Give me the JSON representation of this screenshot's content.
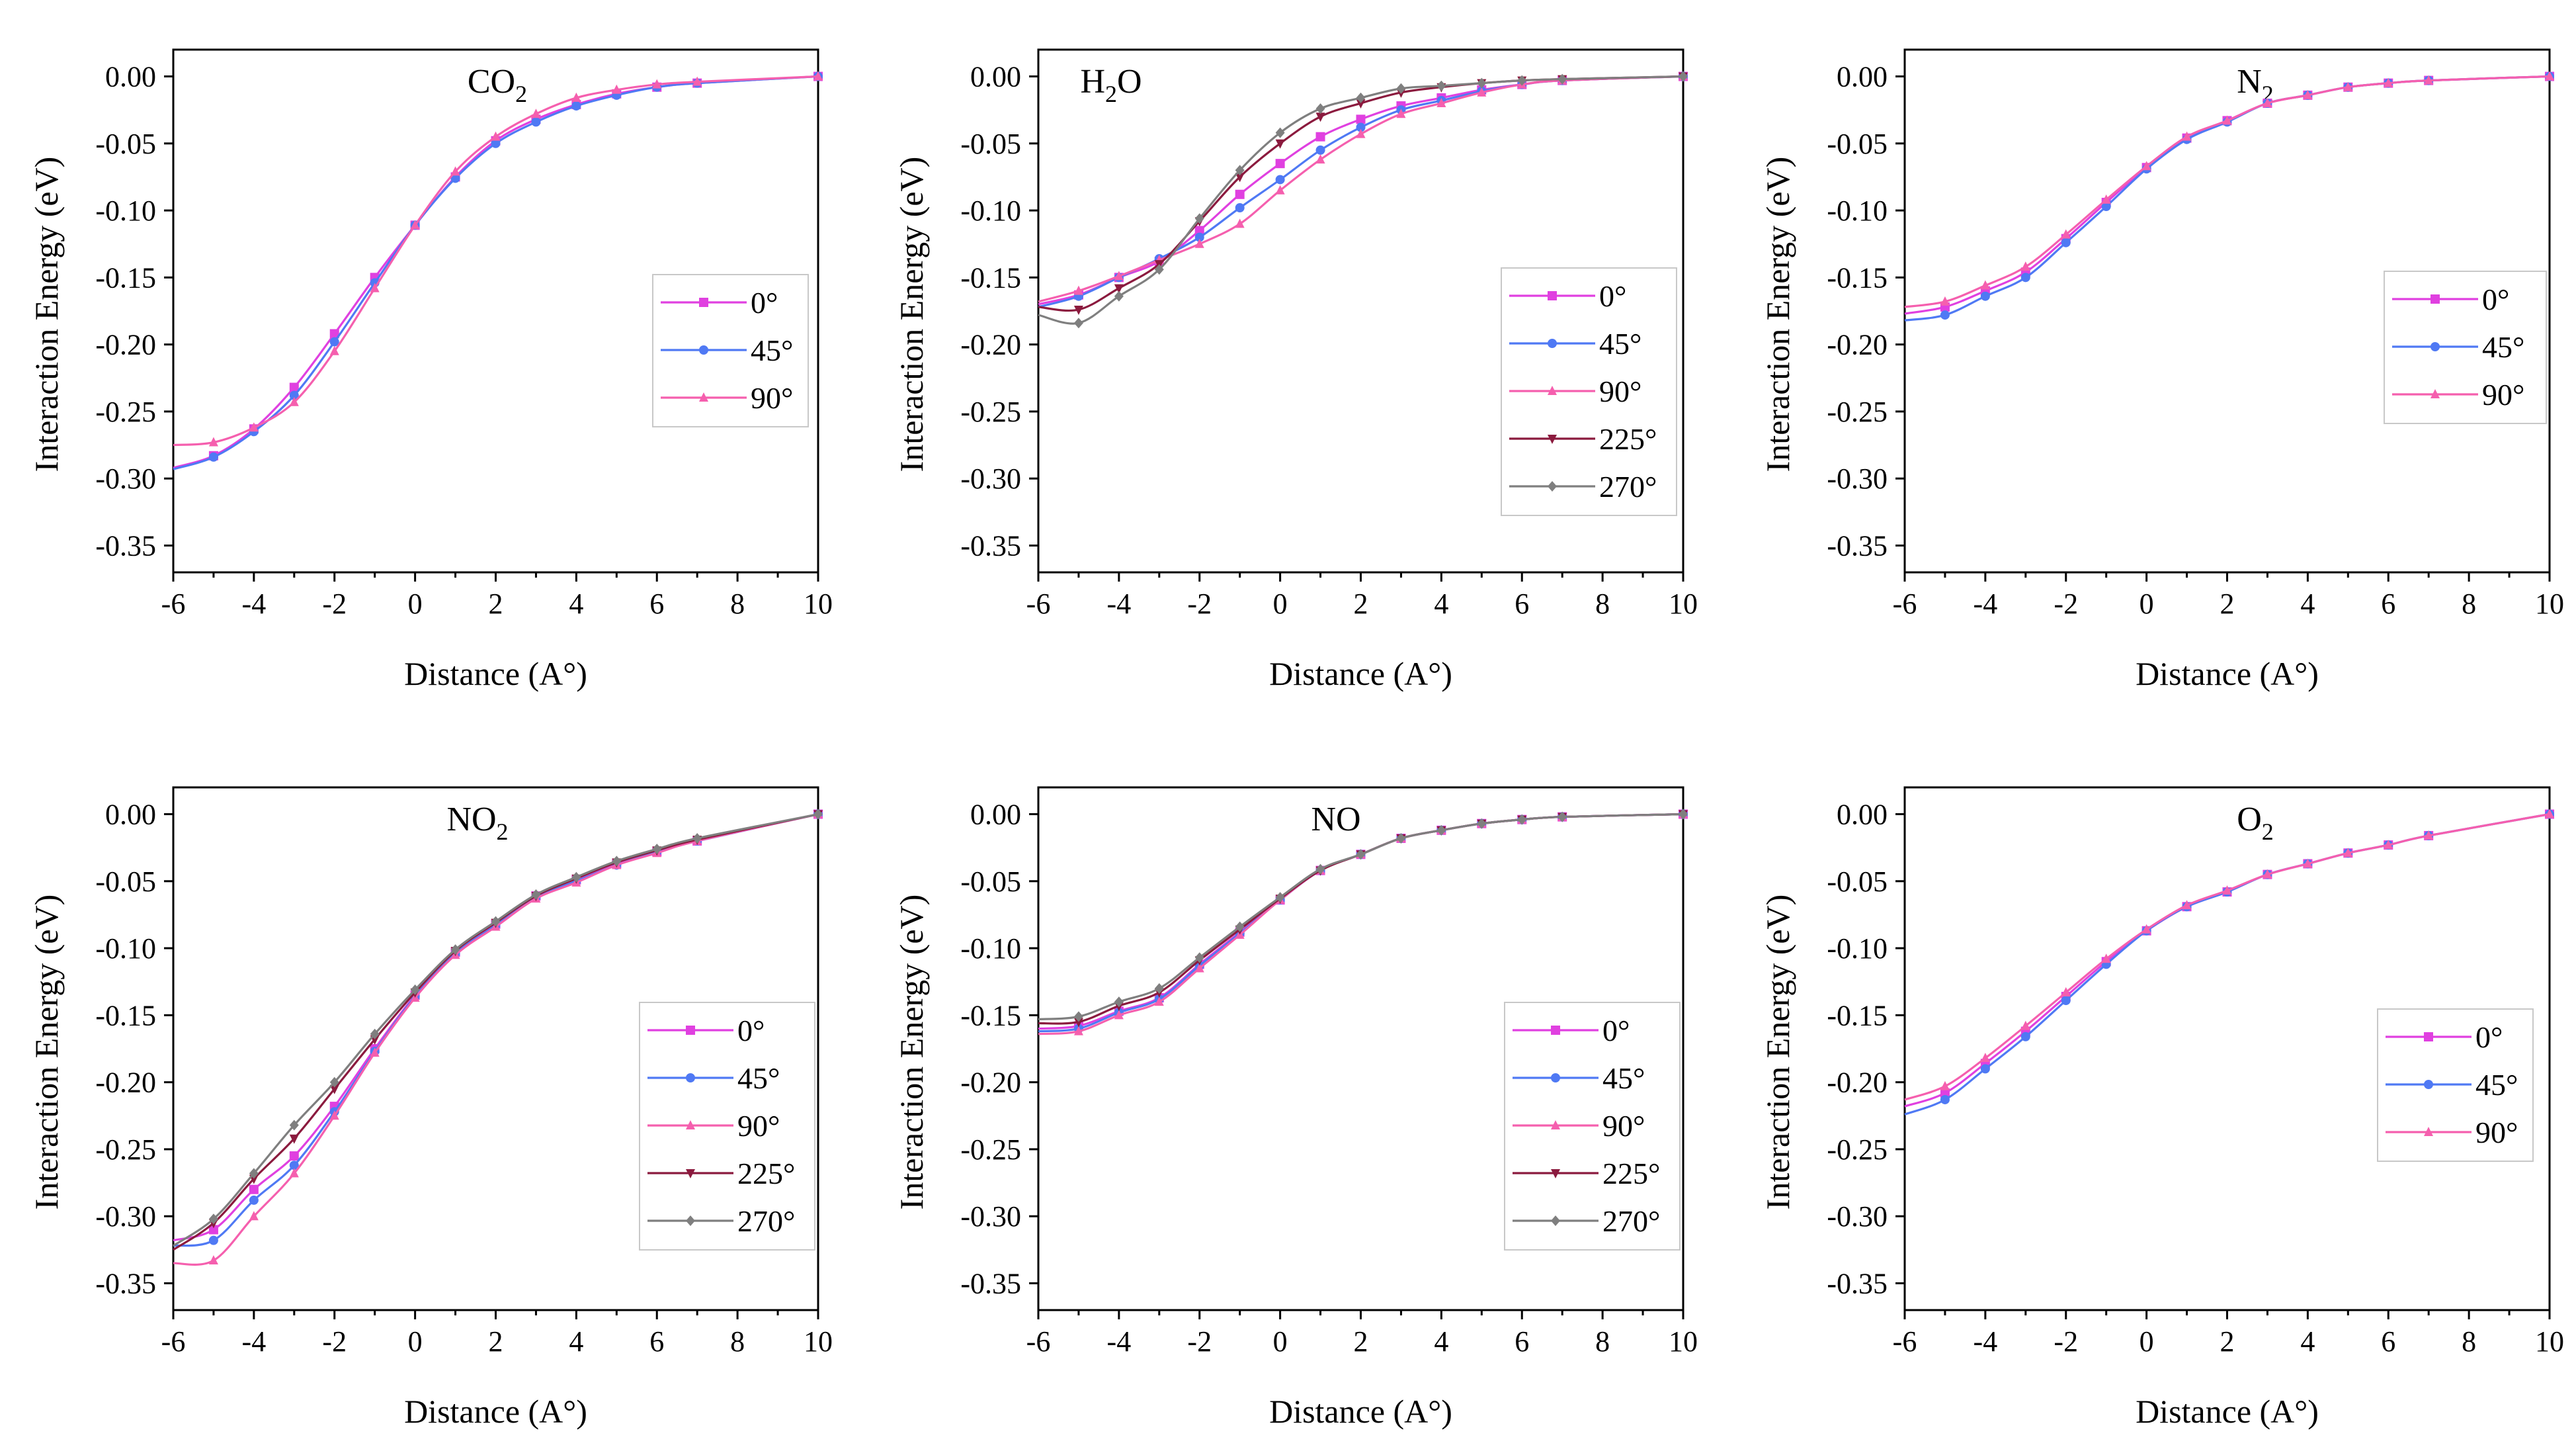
{
  "figure": {
    "description_visible": ""
  },
  "colors": {
    "0°": "#e040e0",
    "45°": "#4f79f4",
    "90°": "#f55fae",
    "225°": "#8b1a3e",
    "270°": "#7f7f7f"
  },
  "chart_data": [
    {
      "type": "line",
      "title": "CO2",
      "title_main": "CO",
      "title_sub": "2",
      "xlabel": "Distance (A°)",
      "ylabel": "Interaction Energy (eV)",
      "xlim": [
        -6,
        10
      ],
      "ylim": [
        -0.37,
        0.02
      ],
      "xticks": [
        "-6",
        "-4",
        "-2",
        "0",
        "2",
        "4",
        "6",
        "8",
        "10"
      ],
      "yticks": [
        "0.00",
        "-0.05",
        "-0.10",
        "-0.15",
        "-0.20",
        "-0.25",
        "-0.30",
        "-0.35"
      ],
      "x": [
        -6,
        -5,
        -4,
        -3,
        -2,
        -1,
        0,
        1,
        2,
        3,
        4,
        5,
        6,
        7,
        10
      ],
      "legend": [
        "0°",
        "45°",
        "90°"
      ],
      "series": [
        {
          "name": "0°",
          "values": [
            -0.292,
            -0.283,
            -0.263,
            -0.232,
            -0.192,
            -0.15,
            -0.111,
            -0.075,
            -0.048,
            -0.032,
            -0.021,
            -0.013,
            -0.008,
            -0.005,
            0.0
          ]
        },
        {
          "name": "45°",
          "values": [
            -0.293,
            -0.284,
            -0.265,
            -0.238,
            -0.198,
            -0.154,
            -0.111,
            -0.076,
            -0.05,
            -0.034,
            -0.022,
            -0.014,
            -0.008,
            -0.005,
            0.0
          ]
        },
        {
          "name": "90°",
          "values": [
            -0.275,
            -0.273,
            -0.262,
            -0.243,
            -0.205,
            -0.158,
            -0.111,
            -0.071,
            -0.045,
            -0.028,
            -0.016,
            -0.01,
            -0.006,
            -0.004,
            0.0
          ]
        }
      ]
    },
    {
      "type": "line",
      "title": "H2O",
      "title_main": "H",
      "title_sub": "2",
      "title_tail": "O",
      "xlabel": "Distance (A°)",
      "ylabel": "Interaction Energy (eV)",
      "xlim": [
        -6,
        10
      ],
      "ylim": [
        -0.37,
        0.02
      ],
      "xticks": [
        "-6",
        "-4",
        "-2",
        "0",
        "2",
        "4",
        "6",
        "8",
        "10"
      ],
      "yticks": [
        "0.00",
        "-0.05",
        "-0.10",
        "-0.15",
        "-0.20",
        "-0.25",
        "-0.30",
        "-0.35"
      ],
      "x": [
        -6,
        -5,
        -4,
        -3,
        -2,
        -1,
        0,
        1,
        2,
        3,
        4,
        5,
        6,
        7,
        10
      ],
      "legend": [
        "0°",
        "45°",
        "90°",
        "225°",
        "270°"
      ],
      "series": [
        {
          "name": "0°",
          "values": [
            -0.17,
            -0.163,
            -0.15,
            -0.138,
            -0.115,
            -0.088,
            -0.065,
            -0.045,
            -0.032,
            -0.022,
            -0.016,
            -0.01,
            -0.006,
            -0.003,
            0.0
          ]
        },
        {
          "name": "45°",
          "values": [
            -0.172,
            -0.164,
            -0.15,
            -0.136,
            -0.12,
            -0.098,
            -0.077,
            -0.055,
            -0.038,
            -0.025,
            -0.018,
            -0.011,
            -0.006,
            -0.003,
            0.0
          ]
        },
        {
          "name": "90°",
          "values": [
            -0.168,
            -0.16,
            -0.149,
            -0.137,
            -0.125,
            -0.11,
            -0.085,
            -0.062,
            -0.043,
            -0.028,
            -0.02,
            -0.012,
            -0.006,
            -0.003,
            0.0
          ]
        },
        {
          "name": "225°",
          "values": [
            -0.172,
            -0.174,
            -0.158,
            -0.14,
            -0.108,
            -0.075,
            -0.05,
            -0.03,
            -0.02,
            -0.012,
            -0.008,
            -0.005,
            -0.003,
            -0.002,
            0.0
          ]
        },
        {
          "name": "270°",
          "values": [
            -0.178,
            -0.184,
            -0.164,
            -0.144,
            -0.106,
            -0.07,
            -0.042,
            -0.024,
            -0.016,
            -0.009,
            -0.007,
            -0.005,
            -0.003,
            -0.002,
            0.0
          ]
        }
      ]
    },
    {
      "type": "line",
      "title": "N2",
      "title_main": "N",
      "title_sub": "2",
      "xlabel": "Distance (A°)",
      "ylabel": "Interaction Energy (eV)",
      "xlim": [
        -6,
        10
      ],
      "ylim": [
        -0.37,
        0.02
      ],
      "xticks": [
        "-6",
        "-4",
        "-2",
        "0",
        "2",
        "4",
        "6",
        "8",
        "10"
      ],
      "yticks": [
        "0.00",
        "-0.05",
        "-0.10",
        "-0.15",
        "-0.20",
        "-0.25",
        "-0.30",
        "-0.35"
      ],
      "x": [
        -6,
        -5,
        -4,
        -3,
        -2,
        -1,
        0,
        1,
        2,
        3,
        4,
        5,
        6,
        7,
        10
      ],
      "legend": [
        "0°",
        "45°",
        "90°"
      ],
      "series": [
        {
          "name": "0°",
          "values": [
            -0.177,
            -0.172,
            -0.16,
            -0.146,
            -0.121,
            -0.094,
            -0.068,
            -0.046,
            -0.033,
            -0.02,
            -0.014,
            -0.008,
            -0.005,
            -0.003,
            0.0
          ]
        },
        {
          "name": "45°",
          "values": [
            -0.182,
            -0.178,
            -0.164,
            -0.15,
            -0.124,
            -0.097,
            -0.069,
            -0.047,
            -0.034,
            -0.02,
            -0.014,
            -0.008,
            -0.005,
            -0.003,
            0.0
          ]
        },
        {
          "name": "90°",
          "values": [
            -0.172,
            -0.168,
            -0.156,
            -0.142,
            -0.118,
            -0.092,
            -0.067,
            -0.045,
            -0.033,
            -0.02,
            -0.014,
            -0.008,
            -0.005,
            -0.003,
            0.0
          ]
        }
      ]
    },
    {
      "type": "line",
      "title": "NO2",
      "title_main": "NO",
      "title_sub": "2",
      "xlabel": "Distance (A°)",
      "ylabel": "Interaction Energy (eV)",
      "xlim": [
        -6,
        10
      ],
      "ylim": [
        -0.37,
        0.02
      ],
      "xticks": [
        "-6",
        "-4",
        "-2",
        "0",
        "2",
        "4",
        "6",
        "8",
        "10"
      ],
      "yticks": [
        "0.00",
        "-0.05",
        "-0.10",
        "-0.15",
        "-0.20",
        "-0.25",
        "-0.30",
        "-0.35"
      ],
      "x": [
        -6,
        -5,
        -4,
        -3,
        -2,
        -1,
        0,
        1,
        2,
        3,
        4,
        5,
        6,
        7,
        10
      ],
      "legend": [
        "0°",
        "45°",
        "90°",
        "225°",
        "270°"
      ],
      "series": [
        {
          "name": "0°",
          "values": [
            -0.318,
            -0.31,
            -0.28,
            -0.255,
            -0.218,
            -0.175,
            -0.135,
            -0.103,
            -0.082,
            -0.061,
            -0.049,
            -0.037,
            -0.028,
            -0.02,
            0.0
          ]
        },
        {
          "name": "45°",
          "values": [
            -0.322,
            -0.318,
            -0.288,
            -0.262,
            -0.222,
            -0.177,
            -0.136,
            -0.104,
            -0.083,
            -0.062,
            -0.05,
            -0.038,
            -0.028,
            -0.02,
            0.0
          ]
        },
        {
          "name": "90°",
          "values": [
            -0.335,
            -0.333,
            -0.3,
            -0.268,
            -0.225,
            -0.178,
            -0.137,
            -0.105,
            -0.084,
            -0.063,
            -0.051,
            -0.038,
            -0.029,
            -0.02,
            0.0
          ]
        },
        {
          "name": "225°",
          "values": [
            -0.325,
            -0.305,
            -0.272,
            -0.242,
            -0.205,
            -0.168,
            -0.133,
            -0.102,
            -0.081,
            -0.061,
            -0.048,
            -0.036,
            -0.027,
            -0.019,
            0.0
          ]
        },
        {
          "name": "270°",
          "values": [
            -0.322,
            -0.302,
            -0.268,
            -0.232,
            -0.2,
            -0.164,
            -0.131,
            -0.101,
            -0.08,
            -0.06,
            -0.047,
            -0.035,
            -0.026,
            -0.018,
            0.0
          ]
        }
      ]
    },
    {
      "type": "line",
      "title": "NO",
      "title_main": "NO",
      "title_sub": "",
      "xlabel": "Distance (A°)",
      "ylabel": "Interaction Energy (eV)",
      "xlim": [
        -6,
        10
      ],
      "ylim": [
        -0.37,
        0.02
      ],
      "xticks": [
        "-6",
        "-4",
        "-2",
        "0",
        "2",
        "4",
        "6",
        "8",
        "10"
      ],
      "yticks": [
        "0.00",
        "-0.05",
        "-0.10",
        "-0.15",
        "-0.20",
        "-0.25",
        "-0.30",
        "-0.35"
      ],
      "x": [
        -6,
        -5,
        -4,
        -3,
        -2,
        -1,
        0,
        1,
        2,
        3,
        4,
        5,
        6,
        7,
        10
      ],
      "legend": [
        "0°",
        "45°",
        "90°",
        "225°",
        "270°"
      ],
      "series": [
        {
          "name": "0°",
          "values": [
            -0.16,
            -0.158,
            -0.147,
            -0.137,
            -0.112,
            -0.088,
            -0.064,
            -0.042,
            -0.03,
            -0.018,
            -0.012,
            -0.007,
            -0.004,
            -0.002,
            0.0
          ]
        },
        {
          "name": "45°",
          "values": [
            -0.162,
            -0.16,
            -0.148,
            -0.138,
            -0.113,
            -0.089,
            -0.064,
            -0.042,
            -0.03,
            -0.018,
            -0.012,
            -0.007,
            -0.004,
            -0.002,
            0.0
          ]
        },
        {
          "name": "90°",
          "values": [
            -0.164,
            -0.162,
            -0.15,
            -0.14,
            -0.115,
            -0.09,
            -0.064,
            -0.042,
            -0.03,
            -0.018,
            -0.012,
            -0.007,
            -0.004,
            -0.002,
            0.0
          ]
        },
        {
          "name": "225°",
          "values": [
            -0.156,
            -0.155,
            -0.143,
            -0.133,
            -0.109,
            -0.086,
            -0.063,
            -0.042,
            -0.03,
            -0.018,
            -0.012,
            -0.007,
            -0.004,
            -0.002,
            0.0
          ]
        },
        {
          "name": "270°",
          "values": [
            -0.153,
            -0.151,
            -0.14,
            -0.13,
            -0.107,
            -0.084,
            -0.062,
            -0.041,
            -0.03,
            -0.018,
            -0.012,
            -0.007,
            -0.004,
            -0.002,
            0.0
          ]
        }
      ]
    },
    {
      "type": "line",
      "title": "O2",
      "title_main": "O",
      "title_sub": "2",
      "xlabel": "Distance (A°)",
      "ylabel": "Interaction Energy (eV)",
      "xlim": [
        -6,
        10
      ],
      "ylim": [
        -0.37,
        0.02
      ],
      "xticks": [
        "-6",
        "-4",
        "-2",
        "0",
        "2",
        "4",
        "6",
        "8",
        "10"
      ],
      "yticks": [
        "0.00",
        "-0.05",
        "-0.10",
        "-0.15",
        "-0.20",
        "-0.25",
        "-0.30",
        "-0.35"
      ],
      "x": [
        -6,
        -5,
        -4,
        -3,
        -2,
        -1,
        0,
        1,
        2,
        3,
        4,
        5,
        6,
        7,
        10
      ],
      "legend": [
        "0°",
        "45°",
        "90°"
      ],
      "series": [
        {
          "name": "0°",
          "values": [
            -0.218,
            -0.208,
            -0.186,
            -0.162,
            -0.136,
            -0.11,
            -0.087,
            -0.069,
            -0.058,
            -0.045,
            -0.037,
            -0.029,
            -0.023,
            -0.016,
            0.0
          ]
        },
        {
          "name": "45°",
          "values": [
            -0.224,
            -0.213,
            -0.19,
            -0.166,
            -0.139,
            -0.112,
            -0.087,
            -0.069,
            -0.058,
            -0.045,
            -0.037,
            -0.029,
            -0.023,
            -0.016,
            0.0
          ]
        },
        {
          "name": "90°",
          "values": [
            -0.213,
            -0.203,
            -0.182,
            -0.158,
            -0.133,
            -0.108,
            -0.086,
            -0.068,
            -0.057,
            -0.045,
            -0.037,
            -0.029,
            -0.023,
            -0.016,
            0.0
          ]
        }
      ]
    }
  ]
}
